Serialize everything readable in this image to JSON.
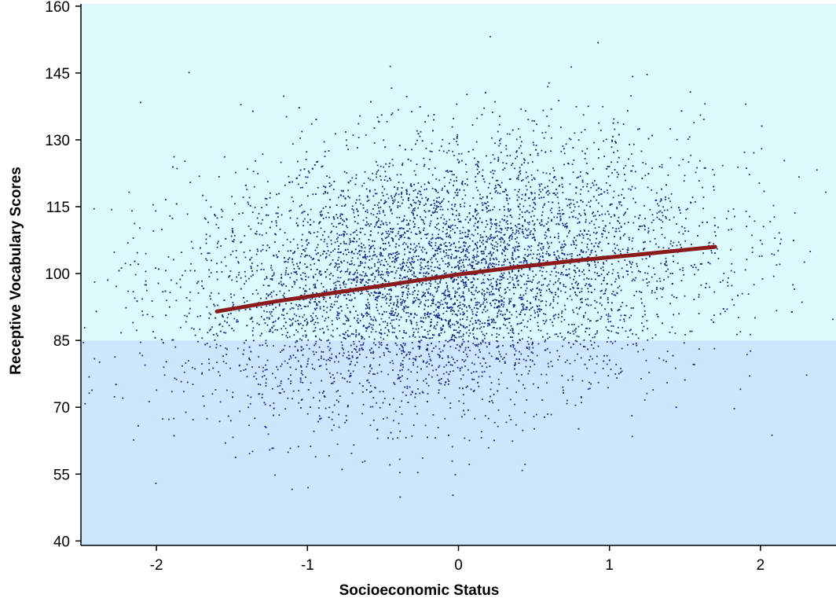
{
  "chart_data": {
    "type": "scatter",
    "title": "",
    "xlabel": "Socioeconomic Status",
    "ylabel": "Receptive Vocabulary Scores",
    "xlim": [
      -2.5,
      2.5
    ],
    "ylim": [
      39,
      160.5
    ],
    "x_ticks": [
      -2,
      -1,
      0,
      1,
      2
    ],
    "x_tick_labels": [
      "-2",
      "-1",
      "0",
      "1",
      "2"
    ],
    "y_ticks": [
      40,
      55,
      70,
      85,
      100,
      115,
      130,
      145,
      160
    ],
    "y_tick_labels": [
      "40",
      "55",
      "70",
      "85",
      "100",
      "115",
      "130",
      "145",
      "160"
    ],
    "grid": false,
    "legend": "none",
    "shaded_regions": [
      {
        "name": "above-85",
        "y_from": 85,
        "y_to": 160.5,
        "color": "#dcfafb"
      },
      {
        "name": "below-85",
        "y_from": 39,
        "y_to": 85,
        "color": "#cde6fb"
      }
    ],
    "point_color": "#1e2a86",
    "point_cloud": {
      "approx_count": 6500,
      "x_mean": -0.1,
      "x_sd": 0.85,
      "y_mean": 99.5,
      "y_sd": 15,
      "correlation": 0.22
    },
    "trend_line": {
      "color": "#8b1a1a",
      "x": [
        -1.6,
        -1.2,
        -0.8,
        -0.4,
        0.0,
        0.4,
        0.8,
        1.2,
        1.7
      ],
      "y": [
        91.5,
        93.8,
        95.8,
        97.8,
        99.8,
        101.5,
        103.0,
        104.3,
        106.0
      ]
    }
  }
}
